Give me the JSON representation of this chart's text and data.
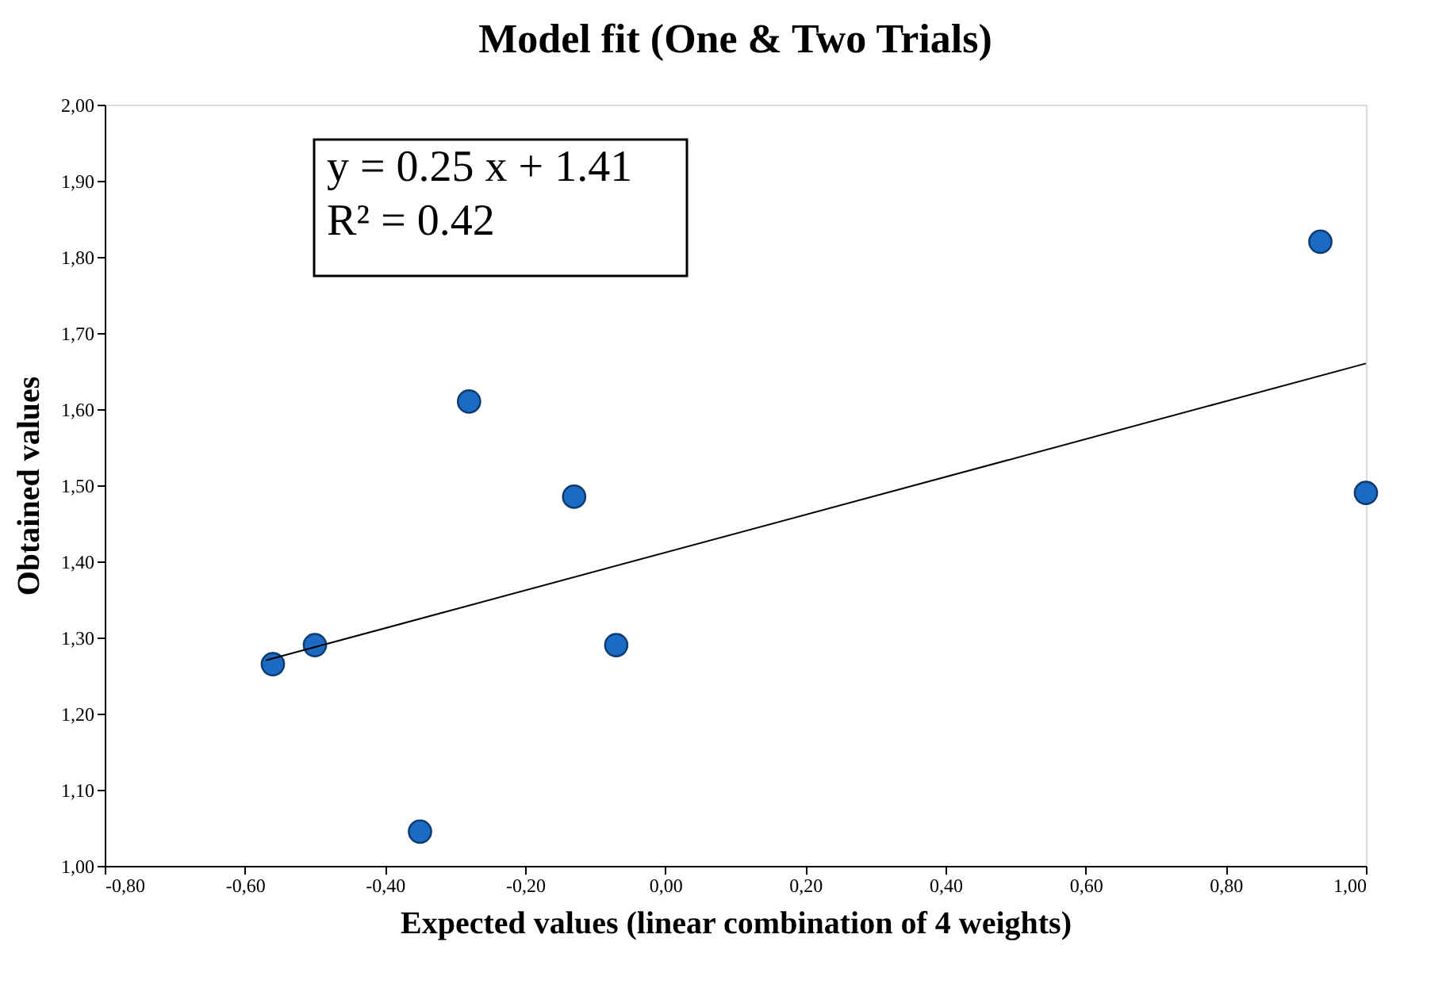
{
  "chart_data": {
    "type": "scatter",
    "title": "Model fit (One & Two Trials)",
    "xlabel": "Expected values (linear combination of 4 weights)",
    "ylabel": "Obtained values",
    "series": [
      {
        "color": "#1b6ac4",
        "x": [
          -0.56,
          -0.5,
          -0.35,
          -0.28,
          -0.13,
          -0.07,
          0.935,
          1.0
        ],
        "values": [
          1.265,
          1.29,
          1.045,
          1.61,
          1.485,
          1.29,
          1.82,
          1.49
        ]
      },
      {
        "type": "line",
        "marker": "none",
        "color": "#000000",
        "x": [
          -0.57,
          1.0
        ],
        "values": [
          1.27,
          1.66
        ]
      }
    ],
    "annotations": [
      "y = 0.25 x + 1.41",
      "R² = 0.42"
    ],
    "xlim": [
      -0.8,
      1.0
    ],
    "ylim": [
      1.0,
      2.0
    ],
    "xticks": [
      {
        "value": -0.8,
        "label": "-0,80"
      },
      {
        "value": -0.6,
        "label": "-0,60"
      },
      {
        "value": -0.4,
        "label": "-0,40"
      },
      {
        "value": -0.2,
        "label": "-0,20"
      },
      {
        "value": 0,
        "label": "0,00"
      },
      {
        "value": 0.2,
        "label": "0,20"
      },
      {
        "value": 0.4,
        "label": "0,40"
      },
      {
        "value": 0.6,
        "label": "0,60"
      },
      {
        "value": 0.8,
        "label": "0,80"
      },
      {
        "value": 1.0,
        "label": "1,00"
      }
    ],
    "yticks": [
      {
        "value": 1.0,
        "label": "1,00"
      },
      {
        "value": 1.1,
        "label": "1,10"
      },
      {
        "value": 1.2,
        "label": "1,20"
      },
      {
        "value": 1.3,
        "label": "1,30"
      },
      {
        "value": 1.4,
        "label": "1,40"
      },
      {
        "value": 1.5,
        "label": "1,50"
      },
      {
        "value": 1.6,
        "label": "1,60"
      },
      {
        "value": 1.7,
        "label": "1,70"
      },
      {
        "value": 1.8,
        "label": "1,80"
      },
      {
        "value": 1.9,
        "label": "1,90"
      },
      {
        "value": 2.0,
        "label": "2,00"
      }
    ],
    "grid": false,
    "legend": false,
    "marker": "circle",
    "line_style": "solid"
  }
}
